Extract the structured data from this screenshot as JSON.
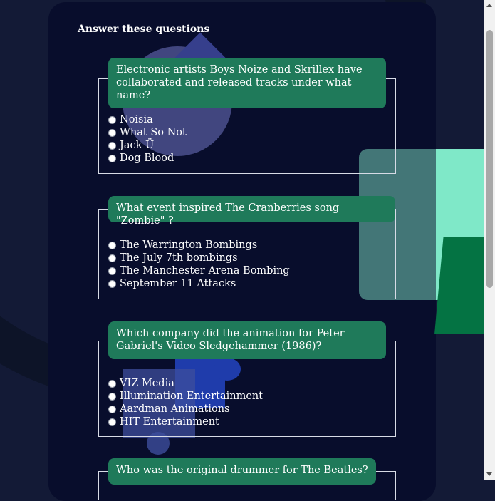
{
  "page": {
    "heading": "Answer these questions"
  },
  "questions": [
    {
      "text": "Electronic artists Boys Noize and Skrillex have collaborated and released tracks under what name?",
      "options": [
        "Noisia",
        "What So Not",
        "Jack Ü",
        "Dog Blood"
      ]
    },
    {
      "text": "What event inspired The Cranberries song \"Zombie\" ?",
      "options": [
        "The Warrington Bombings",
        "The July 7th bombings",
        "The Manchester Arena Bombing",
        "September 11 Attacks"
      ]
    },
    {
      "text": "Which company did the animation for Peter Gabriel's Video Sledgehammer (1986)?",
      "options": [
        "VIZ Media",
        "Illumination Entertainment",
        "Aardman Animations",
        "HIT Entertainment"
      ]
    },
    {
      "text": "Who was the original drummer for The Beatles?",
      "options": []
    }
  ],
  "colors": {
    "page_bg": "#131a36",
    "card_bg": "#080d2c",
    "question_label_bg": "#1f7a5a",
    "border": "#d7dbe6",
    "accent_mint": "#7fe8c8",
    "accent_green": "#047343",
    "accent_blue": "#1f3cab",
    "accent_purple": "#4b518e"
  },
  "icons": {
    "radio": "radio-button-icon",
    "scroll_up": "scroll-up-arrow-icon",
    "scroll_down": "scroll-down-arrow-icon"
  }
}
